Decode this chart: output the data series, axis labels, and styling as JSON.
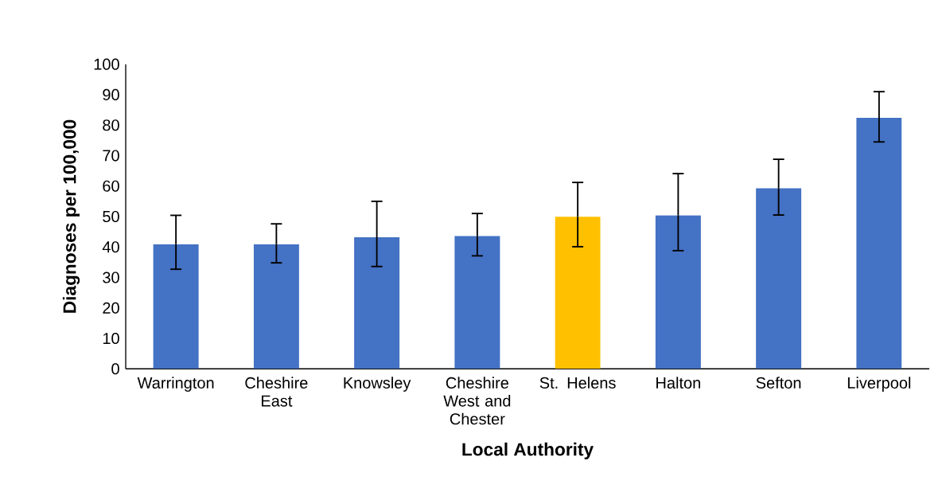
{
  "chart_data": {
    "type": "bar",
    "xlabel": "Local Authority",
    "ylabel": "Diagnoses per 100,000",
    "categories": [
      "Warrington",
      "Cheshire East",
      "Knowsley",
      "Cheshire West and Chester",
      "St. Helens",
      "Halton",
      "Sefton",
      "Liverpool"
    ],
    "values": [
      40.9,
      40.9,
      43.2,
      43.6,
      49.9,
      50.4,
      59.3,
      82.4
    ],
    "colors": [
      "#4472c4",
      "#4472c4",
      "#4472c4",
      "#4472c4",
      "#ffc000",
      "#4472c4",
      "#4472c4",
      "#4472c4"
    ],
    "errors": [
      [
        32.7,
        50.4
      ],
      [
        34.8,
        47.6
      ],
      [
        33.6,
        55.0
      ],
      [
        37.1,
        51.0
      ],
      [
        40.1,
        61.2
      ],
      [
        38.8,
        64.1
      ],
      [
        50.5,
        68.8
      ],
      [
        74.5,
        91.0
      ]
    ],
    "ylim": [
      0,
      100
    ],
    "yticks": [
      0,
      10,
      20,
      30,
      40,
      50,
      60,
      70,
      80,
      90,
      100
    ]
  }
}
